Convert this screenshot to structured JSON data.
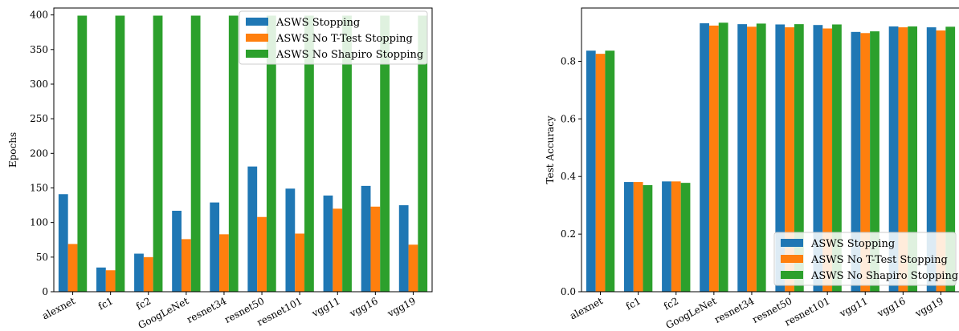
{
  "colors": {
    "ASWS Stopping": "#1f77b4",
    "ASWS No T-Test Stopping": "#ff7f0e",
    "ASWS No Shapiro Stopping": "#2ca02c"
  },
  "chart_data": [
    {
      "type": "bar",
      "title": "",
      "xlabel": "",
      "ylabel": "Epochs",
      "ylim": [
        0,
        410
      ],
      "yticks": [
        0,
        50,
        100,
        150,
        200,
        250,
        300,
        350,
        400
      ],
      "categories": [
        "alexnet",
        "fc1",
        "fc2",
        "GoogLeNet",
        "resnet34",
        "resnet50",
        "resnet101",
        "vgg11",
        "vgg16",
        "vgg19"
      ],
      "legend_position": "top-right",
      "grid": false,
      "series": [
        {
          "name": "ASWS Stopping",
          "values": [
            141,
            35,
            55,
            117,
            129,
            181,
            149,
            139,
            153,
            125
          ]
        },
        {
          "name": "ASWS No T-Test Stopping",
          "values": [
            69,
            31,
            50,
            76,
            83,
            108,
            84,
            120,
            123,
            68
          ]
        },
        {
          "name": "ASWS No Shapiro Stopping",
          "values": [
            399,
            399,
            399,
            399,
            399,
            399,
            399,
            399,
            399,
            399
          ]
        }
      ]
    },
    {
      "type": "bar",
      "title": "",
      "xlabel": "",
      "ylabel": "Test Accuracy",
      "ylim": [
        0,
        0.985
      ],
      "yticks": [
        0.0,
        0.2,
        0.4,
        0.6,
        0.8
      ],
      "categories": [
        "alexnet",
        "fc1",
        "fc2",
        "GoogLeNet",
        "resnet34",
        "resnet50",
        "resnet101",
        "vgg11",
        "vgg16",
        "vgg19"
      ],
      "legend_position": "lower-right",
      "grid": false,
      "series": [
        {
          "name": "ASWS Stopping",
          "values": [
            0.837,
            0.381,
            0.383,
            0.932,
            0.929,
            0.928,
            0.926,
            0.902,
            0.921,
            0.918
          ]
        },
        {
          "name": "ASWS No T-Test Stopping",
          "values": [
            0.826,
            0.381,
            0.383,
            0.924,
            0.92,
            0.918,
            0.914,
            0.898,
            0.918,
            0.907
          ]
        },
        {
          "name": "ASWS No Shapiro Stopping",
          "values": [
            0.837,
            0.37,
            0.378,
            0.934,
            0.931,
            0.929,
            0.928,
            0.904,
            0.921,
            0.92
          ]
        }
      ]
    }
  ]
}
